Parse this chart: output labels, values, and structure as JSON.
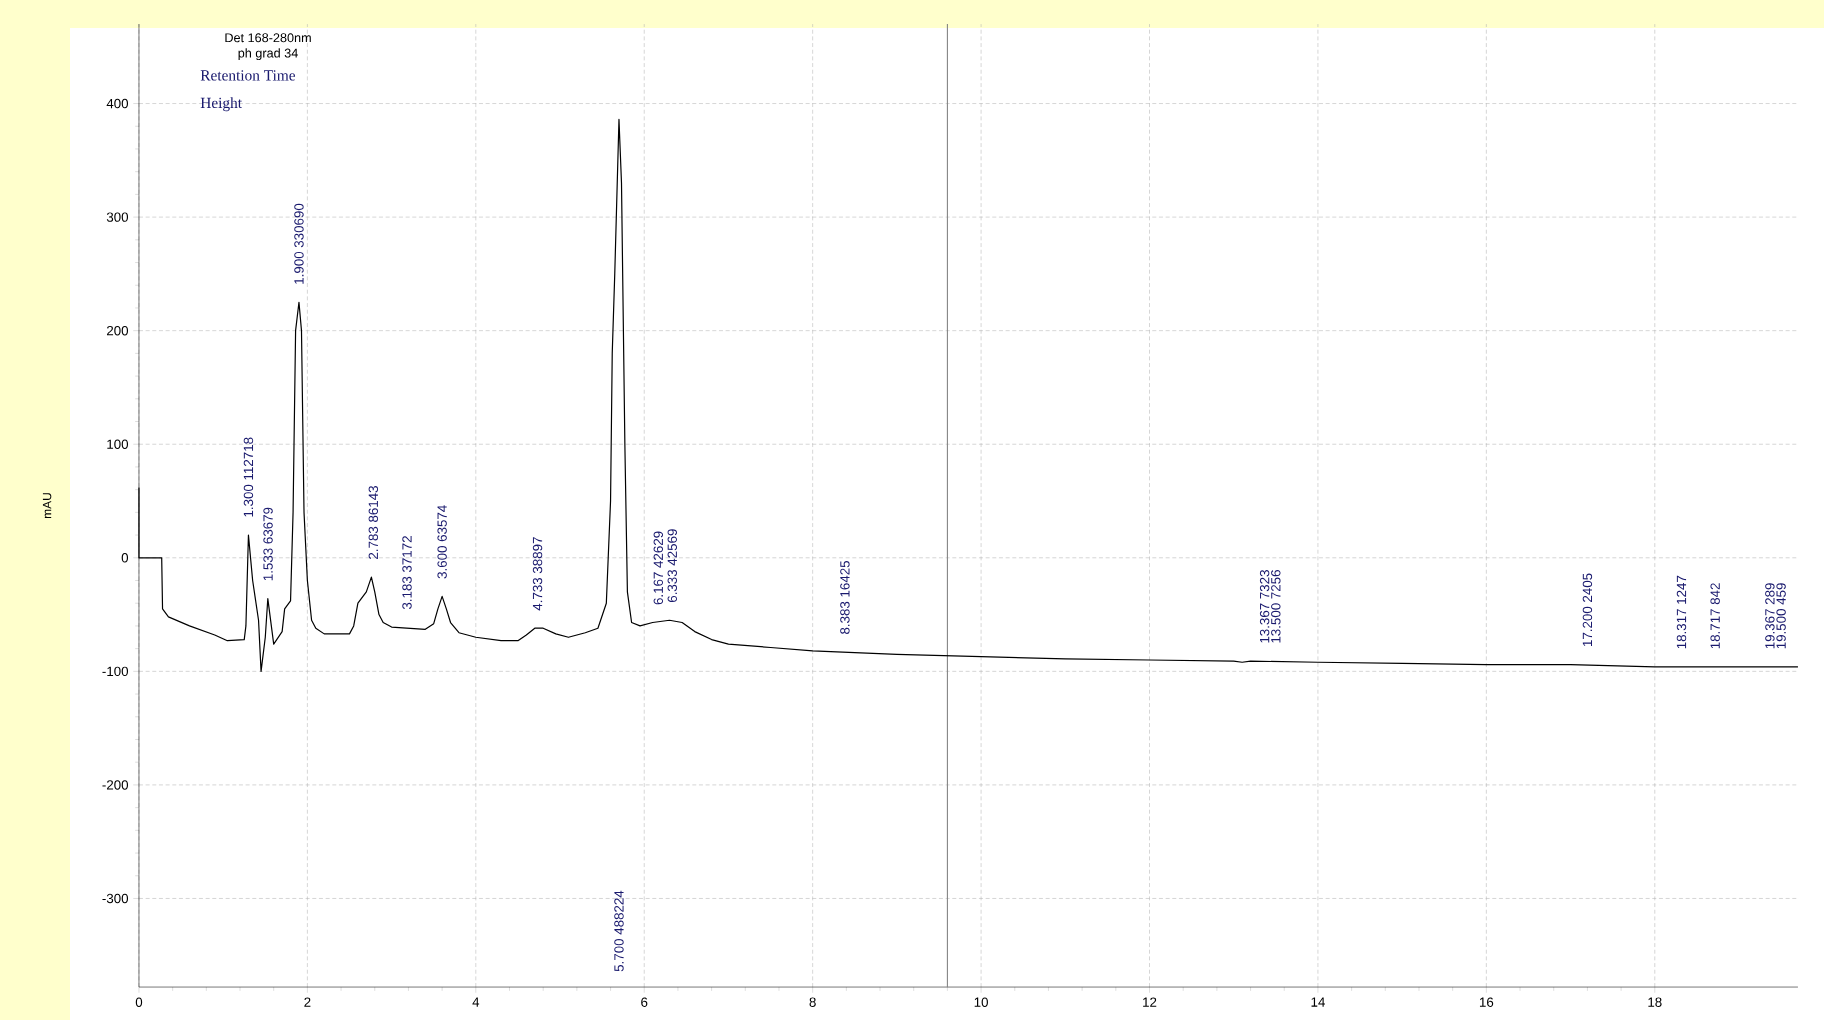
{
  "chart_data": {
    "type": "line",
    "ylabel": "mAU",
    "x": [
      0,
      0,
      0.27,
      0.28,
      0.35,
      0.6,
      0.9,
      1.05,
      1.25,
      1.27,
      1.3,
      1.35,
      1.42,
      1.45,
      1.5,
      1.53,
      1.6,
      1.7,
      1.73,
      1.8,
      1.83,
      1.86,
      1.9,
      1.93,
      1.96,
      2.0,
      2.05,
      2.1,
      2.2,
      2.5,
      2.55,
      2.6,
      2.7,
      2.76,
      2.8,
      2.85,
      2.9,
      3.0,
      3.4,
      3.5,
      3.55,
      3.6,
      3.65,
      3.7,
      3.8,
      4.0,
      4.3,
      4.5,
      4.6,
      4.7,
      4.8,
      4.95,
      5.1,
      5.3,
      5.45,
      5.55,
      5.6,
      5.62,
      5.65,
      5.7,
      5.73,
      5.77,
      5.8,
      5.85,
      5.95,
      6.1,
      6.3,
      6.45,
      6.6,
      6.8,
      7.0,
      7.5,
      8.0,
      9.0,
      10,
      11,
      12,
      13,
      13.1,
      13.2,
      14,
      15,
      16,
      17,
      18,
      19.7
    ],
    "values": [
      62,
      0,
      0,
      -45,
      -52,
      -60,
      -68,
      -73,
      -72,
      -60,
      20,
      -20,
      -55,
      -100,
      -70,
      -36,
      -76,
      -65,
      -45,
      -38,
      40,
      200,
      225,
      200,
      40,
      -20,
      -55,
      -62,
      -67,
      -67,
      -60,
      -40,
      -30,
      -17,
      -30,
      -50,
      -57,
      -61,
      -63,
      -58,
      -45,
      -34,
      -45,
      -57,
      -66,
      -70,
      -73,
      -73,
      -68,
      -62,
      -62,
      -67,
      -70,
      -66,
      -62,
      -40,
      50,
      180,
      250,
      386,
      330,
      100,
      -30,
      -57,
      -60,
      -57,
      -55,
      -57,
      -65,
      -72,
      -76,
      -79,
      -82,
      -85,
      -87,
      -89,
      -90,
      -91,
      -92,
      -91,
      -92,
      -93,
      -94,
      -94,
      -96,
      -96
    ],
    "color": "#000000",
    "xlim": [
      0,
      19.7
    ],
    "ylim": [
      -378,
      470
    ],
    "xticks": [
      0,
      2,
      4,
      6,
      8,
      10,
      12,
      14,
      16,
      18
    ],
    "yticks": [
      -300,
      -200,
      -100,
      0,
      100,
      200,
      300,
      400
    ],
    "grid": true,
    "ref_lines": [
      {
        "axis": "x",
        "value": 9.6,
        "color": "#808080"
      }
    ],
    "annotations": [
      "Det 168-280nm",
      "ph grad 34",
      "Retention Time",
      "Height",
      {
        "text": "1.300 112718",
        "x": 1.3,
        "y": 20
      },
      {
        "text": "1.533 63679",
        "x": 1.533,
        "y": -36
      },
      {
        "text": "1.900 330690",
        "x": 1.9,
        "y": 225
      },
      {
        "text": "2.783 86143",
        "x": 2.783,
        "y": -17
      },
      {
        "text": "3.183 37172",
        "x": 3.183,
        "y": -61
      },
      {
        "text": "3.600 63574",
        "x": 3.6,
        "y": -34
      },
      {
        "text": "4.733 38897",
        "x": 4.733,
        "y": -62
      },
      "5.700 488224",
      {
        "text": "6.167 42629",
        "x": 6.167,
        "y": -57
      },
      {
        "text": "6.333 42569",
        "x": 6.333,
        "y": -55
      },
      {
        "text": "8.383 16425",
        "x": 8.383,
        "y": -83
      },
      {
        "text": "13.367 7323",
        "x": 13.367,
        "y": -91
      },
      {
        "text": "13.500 7256",
        "x": 13.5,
        "y": -91
      },
      {
        "text": "17.200 2405",
        "x": 17.2,
        "y": -94
      },
      {
        "text": "18.317 1247",
        "x": 18.317,
        "y": -96
      },
      {
        "text": "18.717 842",
        "x": 18.717,
        "y": -96
      },
      {
        "text": "19.367 289",
        "x": 19.367,
        "y": -96
      },
      {
        "text": "19.500 459",
        "x": 19.5,
        "y": -96
      }
    ]
  }
}
